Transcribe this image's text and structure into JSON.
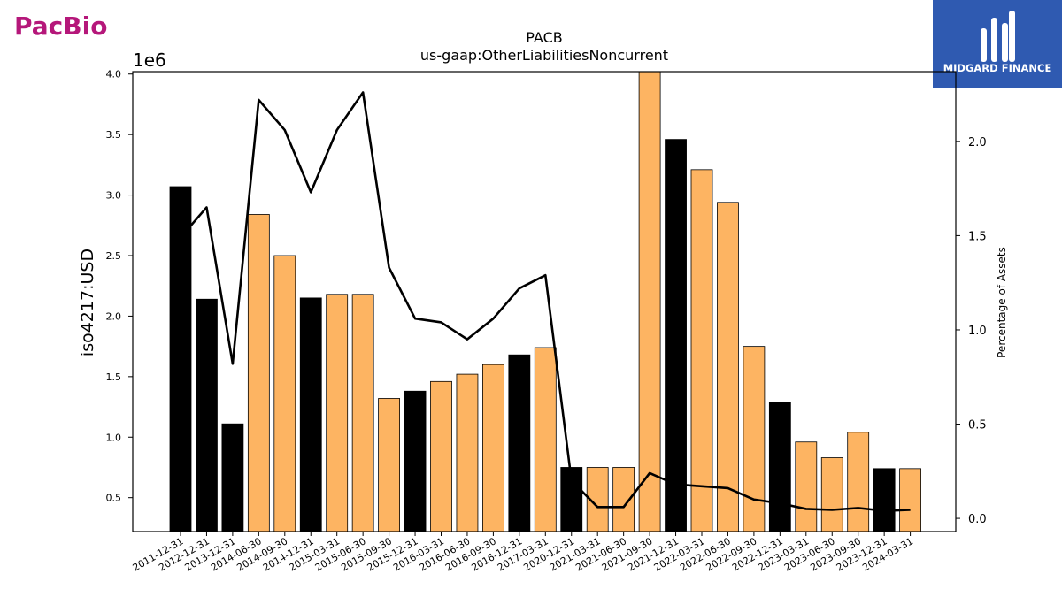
{
  "brand": {
    "left_logo_text": "PacBio",
    "right_logo_text": "MIDGARD FINANCE",
    "pacbio_color": "#b5177a",
    "pacbio_dot_color": "#e6238f",
    "midgard_bg": "#2f5ab1"
  },
  "chart_data": {
    "type": "bar",
    "title": "PACB",
    "subtitle": "us-gaap:OtherLiabilitiesNoncurrent",
    "ylabel": "iso4217:USD",
    "y_multiplier_label": "1e6",
    "y2label": "Percentage of Assets",
    "ylim": [
      0.22,
      4.02
    ],
    "y2lim": [
      -0.07,
      2.37
    ],
    "y_ticks": [
      "0.5",
      "1.0",
      "1.5",
      "2.0",
      "2.5",
      "3.0",
      "3.5",
      "4.0"
    ],
    "y2_ticks": [
      "0.0",
      "0.5",
      "1.0",
      "1.5",
      "2.0"
    ],
    "categories": [
      "2011-12-31",
      "2012-12-31",
      "2013-12-31",
      "2014-06-30",
      "2014-09-30",
      "2014-12-31",
      "2015-03-31",
      "2015-06-30",
      "2015-09-30",
      "2015-12-31",
      "2016-03-31",
      "2016-06-30",
      "2016-09-30",
      "2016-12-31",
      "2017-03-31",
      "2020-12-31",
      "2021-03-31",
      "2021-06-30",
      "2021-09-30",
      "2021-12-31",
      "2022-03-31",
      "2022-06-30",
      "2022-09-30",
      "2022-12-31",
      "2023-03-31",
      "2023-06-30",
      "2023-09-30",
      "2023-12-31",
      "2024-03-31"
    ],
    "values": [
      3.07,
      2.14,
      1.11,
      2.84,
      2.5,
      2.15,
      2.18,
      2.18,
      1.32,
      1.38,
      1.46,
      1.52,
      1.6,
      1.68,
      1.74,
      0.75,
      0.75,
      0.75,
      4.02,
      3.46,
      3.21,
      2.94,
      1.75,
      1.29,
      0.96,
      0.83,
      1.04,
      0.74,
      0.74
    ],
    "bar_types": [
      "annual",
      "annual",
      "annual",
      "quarter",
      "quarter",
      "annual",
      "quarter",
      "quarter",
      "quarter",
      "annual",
      "quarter",
      "quarter",
      "quarter",
      "annual",
      "quarter",
      "annual",
      "quarter",
      "quarter",
      "quarter",
      "annual",
      "quarter",
      "quarter",
      "quarter",
      "annual",
      "quarter",
      "quarter",
      "quarter",
      "annual",
      "quarter"
    ],
    "colors": {
      "annual": "#000000",
      "quarter": "#fdb462",
      "line": "#000000"
    },
    "percentage_line": [
      1.49,
      1.65,
      0.82,
      2.22,
      2.06,
      1.73,
      2.06,
      2.26,
      1.33,
      1.06,
      1.04,
      0.95,
      1.06,
      1.22,
      1.29,
      0.2,
      0.06,
      0.06,
      0.24,
      0.18,
      0.17,
      0.16,
      0.1,
      0.08,
      0.05,
      0.045,
      0.055,
      0.04,
      0.045
    ],
    "legend": "none",
    "grid": false
  }
}
